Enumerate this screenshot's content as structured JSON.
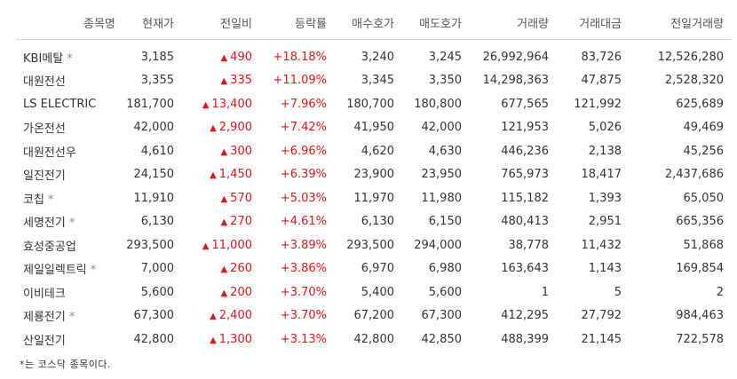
{
  "headers": [
    "종목명",
    "현재가",
    "전일비",
    "등락률",
    "매수호가",
    "매도호가",
    "거래량",
    "거래대금",
    "전일거래량"
  ],
  "up_symbol": "▲",
  "kosdaq_mark": "*",
  "rows": [
    {
      "name": "KBI메탈",
      "kosdaq": true,
      "price": "3,185",
      "change": "490",
      "rate": "+18.18%",
      "bid": "3,240",
      "ask": "3,245",
      "volume": "26,992,964",
      "amount": "83,726",
      "prev_volume": "12,526,280"
    },
    {
      "name": "대원전선",
      "kosdaq": false,
      "price": "3,355",
      "change": "335",
      "rate": "+11.09%",
      "bid": "3,345",
      "ask": "3,350",
      "volume": "14,298,363",
      "amount": "47,875",
      "prev_volume": "2,528,320"
    },
    {
      "name": "LS ELECTRIC",
      "kosdaq": false,
      "price": "181,700",
      "change": "13,400",
      "rate": "+7.96%",
      "bid": "180,700",
      "ask": "180,800",
      "volume": "677,565",
      "amount": "121,992",
      "prev_volume": "625,689"
    },
    {
      "name": "가온전선",
      "kosdaq": false,
      "price": "42,000",
      "change": "2,900",
      "rate": "+7.42%",
      "bid": "41,950",
      "ask": "42,000",
      "volume": "121,953",
      "amount": "5,026",
      "prev_volume": "49,469"
    },
    {
      "name": "대원전선우",
      "kosdaq": false,
      "price": "4,610",
      "change": "300",
      "rate": "+6.96%",
      "bid": "4,620",
      "ask": "4,630",
      "volume": "446,236",
      "amount": "2,138",
      "prev_volume": "45,256"
    },
    {
      "name": "일진전기",
      "kosdaq": false,
      "price": "24,150",
      "change": "1,450",
      "rate": "+6.39%",
      "bid": "23,900",
      "ask": "23,950",
      "volume": "765,973",
      "amount": "18,417",
      "prev_volume": "2,437,686"
    },
    {
      "name": "코칩",
      "kosdaq": true,
      "price": "11,910",
      "change": "570",
      "rate": "+5.03%",
      "bid": "11,970",
      "ask": "11,980",
      "volume": "115,182",
      "amount": "1,393",
      "prev_volume": "65,050"
    },
    {
      "name": "세명전기",
      "kosdaq": true,
      "price": "6,130",
      "change": "270",
      "rate": "+4.61%",
      "bid": "6,130",
      "ask": "6,150",
      "volume": "480,413",
      "amount": "2,951",
      "prev_volume": "665,356"
    },
    {
      "name": "효성중공업",
      "kosdaq": false,
      "price": "293,500",
      "change": "11,000",
      "rate": "+3.89%",
      "bid": "293,500",
      "ask": "294,000",
      "volume": "38,778",
      "amount": "11,432",
      "prev_volume": "51,868"
    },
    {
      "name": "제일일렉트릭",
      "kosdaq": true,
      "price": "7,000",
      "change": "260",
      "rate": "+3.86%",
      "bid": "6,970",
      "ask": "6,980",
      "volume": "163,643",
      "amount": "1,143",
      "prev_volume": "169,854"
    },
    {
      "name": "이비테크",
      "kosdaq": false,
      "price": "5,600",
      "change": "200",
      "rate": "+3.70%",
      "bid": "5,400",
      "ask": "5,600",
      "volume": "1",
      "amount": "5",
      "prev_volume": "2"
    },
    {
      "name": "제룡전기",
      "kosdaq": true,
      "price": "67,300",
      "change": "2,400",
      "rate": "+3.70%",
      "bid": "67,200",
      "ask": "67,300",
      "volume": "412,295",
      "amount": "27,792",
      "prev_volume": "984,463"
    },
    {
      "name": "산일전기",
      "kosdaq": false,
      "price": "42,800",
      "change": "1,300",
      "rate": "+3.13%",
      "bid": "42,800",
      "ask": "42,850",
      "volume": "488,399",
      "amount": "21,145",
      "prev_volume": "722,578"
    }
  ],
  "footnote": "*는 코스닥 종목이다.",
  "colors": {
    "up": "#e0161a",
    "text": "#333333",
    "header": "#555555",
    "divider": "#d6d6d6"
  }
}
